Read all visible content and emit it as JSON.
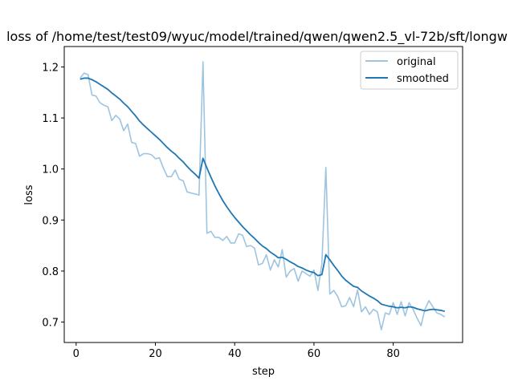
{
  "chart_data": {
    "type": "line",
    "title": "loss of /home/test/test09/wyuc/model/trained/qwen/qwen2.5_vl-72b/sft/longw",
    "xlabel": "step",
    "ylabel": "loss",
    "xlim": [
      -3,
      97.5
    ],
    "ylim": [
      0.66,
      1.24
    ],
    "xticks": [
      0,
      20,
      40,
      60,
      80
    ],
    "yticks": [
      0.7,
      0.8,
      0.9,
      1.0,
      1.1,
      1.2
    ],
    "ytick_labels": [
      "0.7",
      "0.8",
      "0.9",
      "1.0",
      "1.1",
      "1.2"
    ],
    "grid": false,
    "legend_position": "top-right",
    "x": [
      1,
      2,
      3,
      4,
      5,
      6,
      7,
      8,
      9,
      10,
      11,
      12,
      13,
      14,
      15,
      16,
      17,
      18,
      19,
      20,
      21,
      22,
      23,
      24,
      25,
      26,
      27,
      28,
      29,
      30,
      31,
      32,
      33,
      34,
      35,
      36,
      37,
      38,
      39,
      40,
      41,
      42,
      43,
      44,
      45,
      46,
      47,
      48,
      49,
      50,
      51,
      52,
      53,
      54,
      55,
      56,
      57,
      58,
      59,
      60,
      61,
      62,
      63,
      64,
      65,
      66,
      67,
      68,
      69,
      70,
      71,
      72,
      73,
      74,
      75,
      76,
      77,
      78,
      79,
      80,
      81,
      82,
      83,
      84,
      85,
      86,
      87,
      88,
      89,
      90,
      91,
      92,
      93
    ],
    "series": [
      {
        "name": "original",
        "color": "#9ec4e0",
        "values": [
          1.178,
          1.188,
          1.185,
          1.145,
          1.143,
          1.13,
          1.125,
          1.122,
          1.095,
          1.105,
          1.098,
          1.075,
          1.088,
          1.052,
          1.05,
          1.025,
          1.03,
          1.03,
          1.028,
          1.02,
          1.022,
          1.002,
          0.985,
          0.985,
          0.998,
          0.98,
          0.977,
          0.955,
          0.953,
          0.951,
          0.949,
          1.21,
          0.874,
          0.878,
          0.866,
          0.866,
          0.86,
          0.868,
          0.855,
          0.855,
          0.873,
          0.87,
          0.848,
          0.85,
          0.845,
          0.812,
          0.815,
          0.832,
          0.802,
          0.822,
          0.808,
          0.842,
          0.788,
          0.8,
          0.805,
          0.78,
          0.8,
          0.795,
          0.79,
          0.802,
          0.762,
          0.815,
          1.003,
          0.755,
          0.762,
          0.75,
          0.73,
          0.732,
          0.748,
          0.73,
          0.763,
          0.72,
          0.73,
          0.715,
          0.725,
          0.72,
          0.685,
          0.718,
          0.715,
          0.738,
          0.715,
          0.74,
          0.712,
          0.738,
          0.725,
          0.708,
          0.693,
          0.725,
          0.742,
          0.73,
          0.718,
          0.715,
          0.71
        ]
      },
      {
        "name": "smoothed",
        "color": "#1f77b4",
        "values": [
          1.176,
          1.178,
          1.178,
          1.175,
          1.171,
          1.166,
          1.161,
          1.156,
          1.149,
          1.143,
          1.137,
          1.129,
          1.122,
          1.113,
          1.104,
          1.094,
          1.086,
          1.079,
          1.072,
          1.065,
          1.058,
          1.05,
          1.042,
          1.035,
          1.029,
          1.021,
          1.014,
          1.005,
          0.997,
          0.99,
          0.982,
          1.021,
          1.002,
          0.984,
          0.967,
          0.952,
          0.938,
          0.926,
          0.915,
          0.905,
          0.896,
          0.887,
          0.879,
          0.871,
          0.864,
          0.856,
          0.849,
          0.844,
          0.837,
          0.832,
          0.826,
          0.827,
          0.823,
          0.818,
          0.814,
          0.809,
          0.806,
          0.802,
          0.799,
          0.797,
          0.791,
          0.793,
          0.832,
          0.822,
          0.811,
          0.801,
          0.79,
          0.782,
          0.776,
          0.77,
          0.768,
          0.761,
          0.756,
          0.751,
          0.747,
          0.742,
          0.735,
          0.733,
          0.731,
          0.73,
          0.728,
          0.729,
          0.728,
          0.73,
          0.729,
          0.726,
          0.724,
          0.722,
          0.724,
          0.725,
          0.724,
          0.723,
          0.721
        ]
      }
    ]
  }
}
